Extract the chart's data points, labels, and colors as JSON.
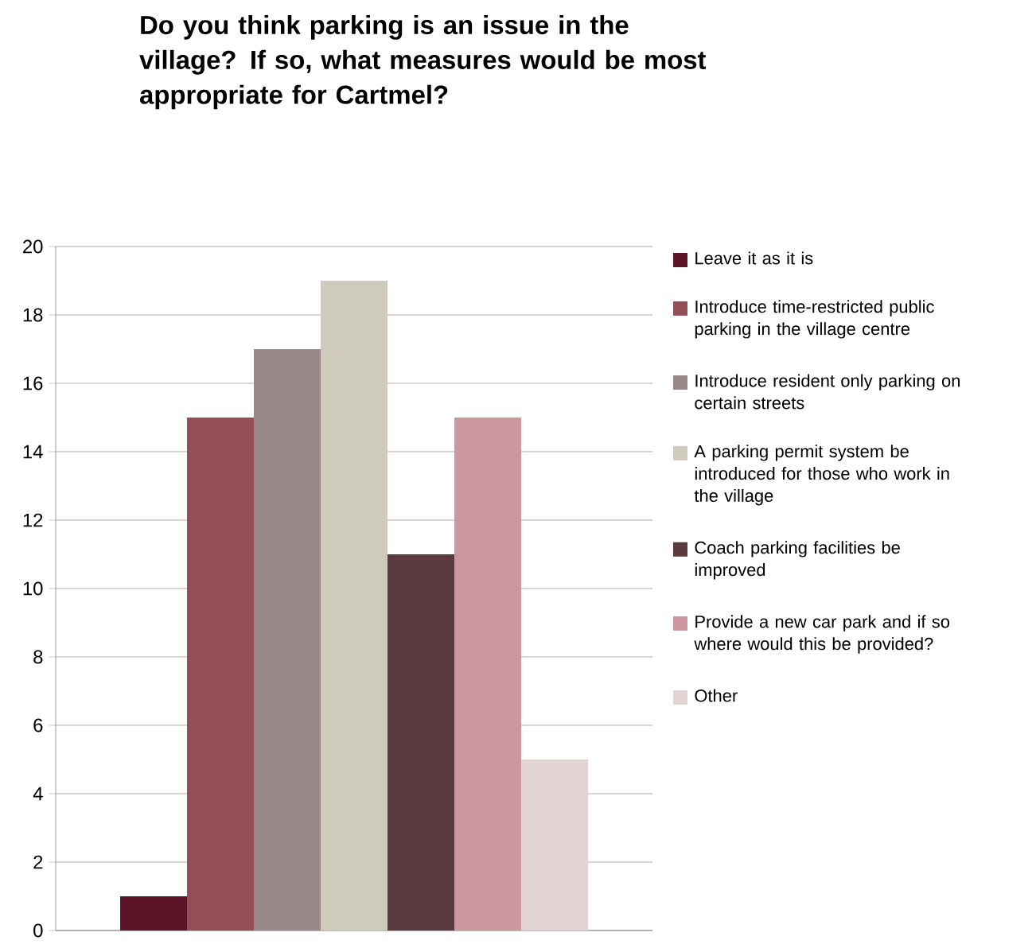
{
  "chart_data": {
    "type": "bar",
    "title": "Do you think parking is an issue in the village? If so, what measures would be most appropriate for Cartmel?",
    "categories": [
      null
    ],
    "series": [
      {
        "name": "Leave it as it is",
        "color": "#5e1428",
        "values": [
          1
        ]
      },
      {
        "name": "Introduce time-restricted public parking in the village centre",
        "color": "#944e58",
        "values": [
          15
        ]
      },
      {
        "name": "Introduce resident only parking on certain streets",
        "color": "#9a8787",
        "values": [
          17
        ]
      },
      {
        "name": "A parking permit system be introduced for those who work in the village",
        "color": "#cecbbd",
        "values": [
          19
        ]
      },
      {
        "name": "Coach parking facilities be improved",
        "color": "#5b3a40",
        "values": [
          11
        ]
      },
      {
        "name": "Provide a new car park and if so where would this be provided?",
        "color": "#cc97a0",
        "values": [
          15
        ]
      },
      {
        "name": "Other",
        "color": "#e2d3d5",
        "values": [
          5
        ]
      }
    ],
    "ylim": [
      0,
      20
    ],
    "yticks": [
      0,
      2,
      4,
      6,
      8,
      10,
      12,
      14,
      16,
      18,
      20
    ],
    "grid": "y",
    "legend": "right"
  }
}
